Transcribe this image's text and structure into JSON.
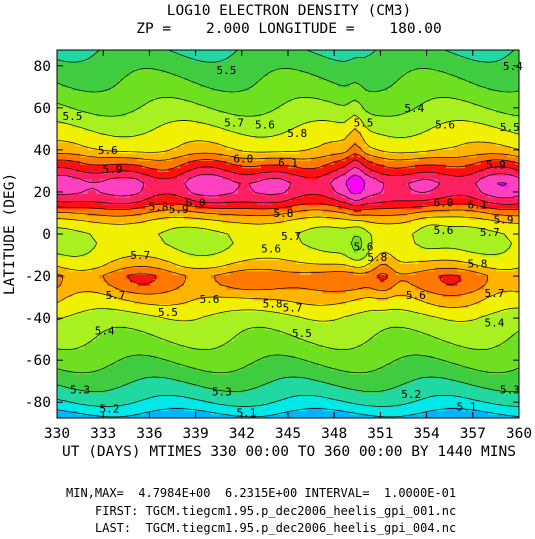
{
  "chart_data": {
    "type": "heatmap",
    "title": "LOG10 ELECTRON DENSITY (CM3)",
    "subtitle": "ZP =    2.000 LONGITUDE =    180.00",
    "xlabel": "UT (DAYS) MTIMES 330 00:00 TO 360 00:00 BY 1440 MINS",
    "ylabel": "LATITUDE (DEG)",
    "xlim": [
      330,
      360
    ],
    "ylim": [
      -87.5,
      87.5
    ],
    "x_ticks": [
      "330",
      "333",
      "336",
      "339",
      "342",
      "345",
      "348",
      "351",
      "354",
      "357",
      "360"
    ],
    "y_ticks": [
      "80",
      "60",
      "40",
      "20",
      "0",
      "-20",
      "-40",
      "-60",
      "-80"
    ],
    "contour_levels": [
      5.0,
      5.1,
      5.2,
      5.3,
      5.4,
      5.5,
      5.6,
      5.7,
      5.8,
      5.9,
      6.0,
      6.1,
      6.2
    ],
    "level_colors": [
      "#00b4ff",
      "#00e8e8",
      "#20d8a0",
      "#40cc40",
      "#6ee020",
      "#a8f020",
      "#f0f000",
      "#ffb400",
      "#ff7800",
      "#ff1010",
      "#ff2060",
      "#ff40c0",
      "#ff00ff"
    ],
    "latitude_profile": {
      "lat": [
        -87.5,
        -80,
        -70,
        -60,
        -50,
        -40,
        -35,
        -30,
        -25,
        -20,
        -15,
        -10,
        -5,
        0,
        5,
        10,
        15,
        20,
        25,
        30,
        35,
        40,
        50,
        60,
        70,
        87.5
      ],
      "value": [
        5.05,
        5.2,
        5.32,
        5.42,
        5.5,
        5.57,
        5.65,
        5.72,
        5.82,
        5.85,
        5.72,
        5.64,
        5.6,
        5.6,
        5.66,
        5.8,
        5.98,
        6.1,
        6.12,
        5.98,
        5.85,
        5.7,
        5.6,
        5.5,
        5.42,
        5.3
      ]
    },
    "contour_labels": [
      {
        "x": 331.0,
        "y": 56,
        "text": "5.5"
      },
      {
        "x": 333.3,
        "y": 40,
        "text": "5.6"
      },
      {
        "x": 333.6,
        "y": 31,
        "text": "5.9"
      },
      {
        "x": 336.6,
        "y": 13,
        "text": "5.8"
      },
      {
        "x": 337.9,
        "y": 12,
        "text": "5.9"
      },
      {
        "x": 339.0,
        "y": 15,
        "text": "6.0"
      },
      {
        "x": 341.5,
        "y": 53,
        "text": "5.7"
      },
      {
        "x": 343.5,
        "y": 52,
        "text": "5.6"
      },
      {
        "x": 342.1,
        "y": 36,
        "text": "6.0"
      },
      {
        "x": 345.0,
        "y": 34,
        "text": "6.1"
      },
      {
        "x": 345.6,
        "y": 48,
        "text": "5.8"
      },
      {
        "x": 344.7,
        "y": 10,
        "text": "5.8"
      },
      {
        "x": 345.2,
        "y": -1,
        "text": "5.7"
      },
      {
        "x": 343.9,
        "y": -7,
        "text": "5.6"
      },
      {
        "x": 335.4,
        "y": -10,
        "text": "5.7"
      },
      {
        "x": 333.8,
        "y": -29,
        "text": "5.7"
      },
      {
        "x": 339.9,
        "y": -31,
        "text": "5.6"
      },
      {
        "x": 337.2,
        "y": -37,
        "text": "5.5"
      },
      {
        "x": 344.0,
        "y": -33,
        "text": "5.8"
      },
      {
        "x": 345.3,
        "y": -35,
        "text": "5.7"
      },
      {
        "x": 345.9,
        "y": -47,
        "text": "5.5"
      },
      {
        "x": 333.1,
        "y": -46,
        "text": "5.4"
      },
      {
        "x": 331.5,
        "y": -74,
        "text": "5.3"
      },
      {
        "x": 333.4,
        "y": -83,
        "text": "5.2"
      },
      {
        "x": 340.7,
        "y": -75,
        "text": "5.3"
      },
      {
        "x": 342.3,
        "y": -85,
        "text": "5.1"
      },
      {
        "x": 350.8,
        "y": -11,
        "text": "5.8"
      },
      {
        "x": 349.9,
        "y": -6,
        "text": "5.6"
      },
      {
        "x": 349.9,
        "y": 53,
        "text": "5.5"
      },
      {
        "x": 353.2,
        "y": 60,
        "text": "5.4"
      },
      {
        "x": 341.0,
        "y": 78,
        "text": "5.5"
      },
      {
        "x": 355.2,
        "y": 52,
        "text": "5.6"
      },
      {
        "x": 358.5,
        "y": 33,
        "text": "5.9"
      },
      {
        "x": 355.1,
        "y": 15,
        "text": "6.0"
      },
      {
        "x": 357.3,
        "y": 14,
        "text": "6.1"
      },
      {
        "x": 359.0,
        "y": 7,
        "text": "5.9"
      },
      {
        "x": 358.1,
        "y": 1,
        "text": "5.7"
      },
      {
        "x": 355.1,
        "y": 2,
        "text": "5.6"
      },
      {
        "x": 357.3,
        "y": -14,
        "text": "5.8"
      },
      {
        "x": 353.3,
        "y": -29,
        "text": "5.6"
      },
      {
        "x": 358.4,
        "y": -28,
        "text": "5.7"
      },
      {
        "x": 358.4,
        "y": -42,
        "text": "5.4"
      },
      {
        "x": 359.4,
        "y": -74,
        "text": "5.3"
      },
      {
        "x": 353.0,
        "y": -76,
        "text": "5.2"
      },
      {
        "x": 356.6,
        "y": -82,
        "text": "5.1"
      },
      {
        "x": 359.6,
        "y": 80,
        "text": "5.4"
      },
      {
        "x": 359.4,
        "y": 51,
        "text": "5.5"
      }
    ]
  },
  "footer": {
    "line1": "MIN,MAX=  4.7984E+00  6.2315E+00 INTERVAL=  1.0000E-01",
    "line2": "FIRST: TGCM.tiegcm1.95.p_dec2006_heelis_gpi_001.nc",
    "line3": "LAST:  TGCM.tiegcm1.95.p_dec2006_heelis_gpi_004.nc"
  }
}
